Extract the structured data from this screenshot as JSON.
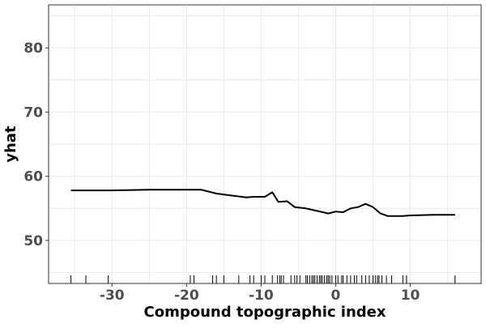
{
  "chart_data": {
    "type": "line",
    "title": "",
    "xlabel": "Compound topographic index",
    "ylabel": "yhat",
    "xlim": [
      -38.5,
      19.5
    ],
    "ylim": [
      43.3,
      86.7
    ],
    "x_ticks": [
      -30,
      -20,
      -10,
      0,
      10
    ],
    "x_tick_labels": [
      "-30",
      "-20",
      "-10",
      "0",
      "10"
    ],
    "y_ticks": [
      50,
      60,
      70,
      80
    ],
    "y_tick_labels": [
      "50",
      "60",
      "70",
      "80"
    ],
    "x_minor_ticks": [
      -35,
      -25,
      -15,
      -5,
      5,
      15
    ],
    "y_minor_ticks": [
      45,
      55,
      65,
      75,
      85
    ],
    "grid": true,
    "series": [
      {
        "color": "#000000",
        "x": [
          -35.5,
          -30,
          -25,
          -22,
          -18,
          -16,
          -14,
          -12,
          -11,
          -9.5,
          -8.5,
          -7.7,
          -6.5,
          -5.5,
          -4,
          -2.5,
          -1,
          0,
          1,
          2,
          3,
          4,
          5,
          6,
          7,
          9,
          10,
          13,
          16
        ],
        "y": [
          57.8,
          57.8,
          57.9,
          57.9,
          57.9,
          57.3,
          57.0,
          56.7,
          56.8,
          56.8,
          57.5,
          56.0,
          56.1,
          55.2,
          55.0,
          54.6,
          54.2,
          54.5,
          54.4,
          55.0,
          55.2,
          55.7,
          55.2,
          54.2,
          53.8,
          53.8,
          53.9,
          54.0,
          54.0
        ]
      }
    ],
    "rug": [
      -35.5,
      -33.5,
      -30.5,
      -19.5,
      -19,
      -16.5,
      -16,
      -15,
      -13,
      -11.5,
      -11,
      -10,
      -9.5,
      -8.5,
      -7.8,
      -7.5,
      -7.3,
      -7,
      -6,
      -5.5,
      -5.2,
      -4.8,
      -4,
      -3.8,
      -3.5,
      -3.2,
      -3,
      -2.8,
      -2.5,
      -2.2,
      -2,
      -1.8,
      -1.5,
      -1.2,
      -1,
      -0.8,
      -0.5,
      0,
      0.3,
      0.8,
      1,
      1.5,
      2,
      2.5,
      2.8,
      3.5,
      4,
      4.5,
      5,
      5.3,
      5.6,
      5.8,
      6.2,
      6.8,
      7.5,
      9,
      9.5,
      16
    ]
  }
}
